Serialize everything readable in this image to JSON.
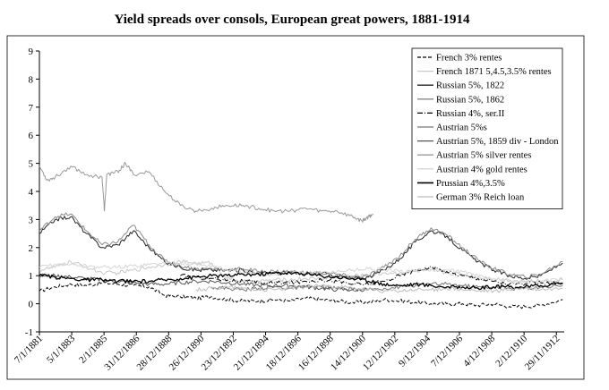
{
  "chart_data": {
    "type": "line",
    "title": "Yield spreads over consols, European great powers, 1881-1914",
    "xlabel": "",
    "ylabel": "",
    "ylim": [
      -1,
      9
    ],
    "yticks": [
      "-1",
      "0",
      "1",
      "2",
      "3",
      "4",
      "5",
      "6",
      "7",
      "8",
      "9"
    ],
    "x_tick_labels": [
      "7/1/1881",
      "5/1/1883",
      "2/1/1885",
      "31/12/1886",
      "28/12/1888",
      "26/12/1890",
      "23/12/1892",
      "21/12/1894",
      "18/12/1896",
      "16/12/1898",
      "14/12/1900",
      "12/12/1902",
      "9/12/1904",
      "7/12/1906",
      "4/12/1908",
      "2/12/1910",
      "29/11/1912"
    ],
    "x_range": [
      1881.0,
      1914.5
    ],
    "grid": false,
    "legend_position": "top-right",
    "series": [
      {
        "name": "French 3% rentes",
        "color": "#000000",
        "dash": "4,2",
        "width": 1.0,
        "x": [
          1881,
          1882,
          1883,
          1884,
          1885,
          1886,
          1887,
          1888,
          1889,
          1890,
          1891,
          1892,
          1893,
          1894,
          1895,
          1896,
          1897,
          1898,
          1899,
          1900,
          1901,
          1902,
          1903,
          1904,
          1905,
          1906,
          1907,
          1908,
          1909,
          1910,
          1911,
          1912,
          1913,
          1914.4
        ],
        "y": [
          0.45,
          0.6,
          0.7,
          0.65,
          0.75,
          0.7,
          0.65,
          0.6,
          0.3,
          0.25,
          0.2,
          0.25,
          0.15,
          0.1,
          0.1,
          0.15,
          0.1,
          0.2,
          0.15,
          0.1,
          0.05,
          0.05,
          0.15,
          0.1,
          0.05,
          0.0,
          0.0,
          0.0,
          -0.05,
          0.0,
          -0.1,
          -0.1,
          -0.05,
          0.15
        ]
      },
      {
        "name": "French 1871 5,4.5,3.5% rentes",
        "color": "#c8c8c8",
        "dash": "",
        "width": 1.0,
        "x": [
          1881,
          1882,
          1883,
          1884,
          1885,
          1886,
          1887,
          1888,
          1889,
          1890,
          1891,
          1892,
          1893,
          1894,
          1895,
          1896,
          1897,
          1898,
          1899,
          1900,
          1901,
          1902,
          1903,
          1904,
          1905,
          1906,
          1907,
          1908,
          1909,
          1910,
          1911,
          1912,
          1913,
          1914.4
        ],
        "y": [
          1.2,
          1.3,
          1.5,
          1.3,
          1.1,
          1.1,
          1.2,
          1.3,
          1.4,
          1.5,
          1.45,
          1.45,
          0.9,
          0.8,
          0.8,
          0.85,
          0.85,
          0.9,
          0.9,
          0.95,
          1.0,
          1.0,
          1.1,
          1.1,
          1.15,
          1.2,
          1.1,
          1.05,
          0.95,
          0.9,
          0.85,
          0.8,
          0.8,
          0.85
        ]
      },
      {
        "name": "Russian 5%, 1822",
        "color": "#222222",
        "dash": "",
        "width": 1.0,
        "x": [
          1881,
          1882,
          1883,
          1884,
          1885,
          1886,
          1887,
          1888,
          1889,
          1890,
          1891,
          1892,
          1893,
          1894,
          1895,
          1896,
          1897,
          1898,
          1899,
          1900,
          1901,
          1902,
          1903,
          1904,
          1905,
          1906,
          1907,
          1908,
          1909,
          1910,
          1911,
          1912,
          1913,
          1914.4
        ],
        "y": [
          2.5,
          3.0,
          3.1,
          2.5,
          2.0,
          2.1,
          2.6,
          2.0,
          1.5,
          1.3,
          1.2,
          1.2,
          1.2,
          1.2,
          1.1,
          1.1,
          1.1,
          1.05,
          1.1,
          1.0,
          0.9,
          0.95,
          1.2,
          1.6,
          2.2,
          2.6,
          2.4,
          1.9,
          1.5,
          1.2,
          1.0,
          0.9,
          1.0,
          1.45
        ]
      },
      {
        "name": "Russian 5%, 1862",
        "color": "#8a8a8a",
        "dash": "",
        "width": 1.0,
        "x": [
          1881,
          1882,
          1883,
          1884,
          1885,
          1886,
          1887,
          1888,
          1889,
          1890,
          1891,
          1892,
          1893,
          1894,
          1895,
          1896,
          1897,
          1898,
          1899,
          1900,
          1901,
          1902,
          1903,
          1904,
          1905,
          1906,
          1907,
          1908,
          1909,
          1910,
          1911,
          1912,
          1913,
          1914.4
        ],
        "y": [
          2.6,
          3.1,
          3.2,
          2.6,
          2.1,
          2.2,
          2.8,
          2.1,
          1.55,
          1.35,
          1.25,
          1.25,
          1.2,
          1.25,
          1.15,
          1.15,
          1.15,
          1.1,
          1.1,
          1.05,
          0.95,
          1.0,
          1.3,
          1.7,
          2.3,
          2.7,
          2.45,
          2.0,
          1.55,
          1.25,
          1.05,
          0.95,
          1.05,
          1.5
        ]
      },
      {
        "name": "Russian 4%, ser.II",
        "color": "#000000",
        "dash": "6,2,1,2",
        "width": 1.0,
        "x": [
          1890,
          1891,
          1892,
          1893,
          1894,
          1895,
          1896,
          1897,
          1898,
          1899,
          1900,
          1901,
          1902,
          1903,
          1904,
          1905,
          1906,
          1907,
          1908,
          1909,
          1910,
          1911,
          1912,
          1913,
          1914.4
        ],
        "y": [
          1.0,
          0.95,
          0.9,
          0.85,
          0.8,
          0.75,
          0.75,
          0.75,
          0.8,
          0.85,
          0.8,
          0.7,
          0.7,
          0.8,
          1.0,
          1.2,
          1.3,
          1.15,
          1.0,
          0.9,
          0.8,
          0.7,
          0.7,
          0.75,
          0.7
        ]
      },
      {
        "name": "Austrian 5%s",
        "color": "#777777",
        "dash": "",
        "width": 1.0,
        "x": [
          1892,
          1893,
          1894,
          1895,
          1896,
          1897,
          1898,
          1899,
          1900,
          1901,
          1902,
          1903,
          1904,
          1905,
          1906,
          1907,
          1908,
          1909,
          1910,
          1911,
          1912,
          1913,
          1914.4
        ],
        "y": [
          0.6,
          0.55,
          0.5,
          0.55,
          0.6,
          0.55,
          0.6,
          0.6,
          0.55,
          0.5,
          0.5,
          0.55,
          0.6,
          0.65,
          0.7,
          0.7,
          0.65,
          0.6,
          0.6,
          0.55,
          0.55,
          0.6,
          0.65
        ]
      },
      {
        "name": "Austrian 5%, 1859 div - London",
        "color": "#555555",
        "dash": "",
        "width": 1.0,
        "x": [
          1881,
          1882,
          1883,
          1884,
          1885,
          1886,
          1887,
          1888,
          1889,
          1890,
          1891,
          1892,
          1893,
          1894,
          1895,
          1896,
          1897,
          1898,
          1899,
          1900,
          1901,
          1902
        ],
        "y": [
          1.0,
          1.0,
          0.95,
          0.9,
          0.85,
          0.8,
          0.75,
          0.7,
          0.7,
          0.75,
          0.8,
          0.8,
          0.75,
          0.7,
          0.65,
          0.65,
          0.65,
          0.6,
          0.55,
          0.5,
          0.5,
          0.5
        ]
      },
      {
        "name": "Austrian 5% silver rentes",
        "color": "#999999",
        "dash": "",
        "width": 1.0,
        "x": [
          1881,
          1881.5,
          1882,
          1883,
          1884,
          1885,
          1885.15,
          1885.3,
          1886,
          1886.5,
          1887,
          1888,
          1889,
          1890,
          1891,
          1892,
          1893,
          1894,
          1895,
          1896,
          1897,
          1898,
          1899,
          1900,
          1901,
          1901.6,
          1902,
          1902.3
        ],
        "y": [
          4.9,
          4.4,
          4.5,
          4.9,
          4.6,
          4.5,
          3.3,
          4.6,
          4.7,
          5.0,
          4.6,
          4.7,
          4.0,
          3.5,
          3.3,
          3.4,
          3.5,
          3.5,
          3.4,
          3.3,
          3.3,
          3.4,
          3.3,
          3.3,
          3.1,
          2.95,
          3.1,
          3.2
        ]
      },
      {
        "name": "Austrian 4% gold rentes",
        "color": "#d6d6d6",
        "dash": "",
        "width": 1.0,
        "x": [
          1881,
          1882,
          1883,
          1884,
          1885,
          1886,
          1887,
          1888,
          1889,
          1890,
          1891,
          1892,
          1893,
          1894,
          1895,
          1896,
          1897,
          1898,
          1899,
          1900,
          1901,
          1902,
          1903,
          1904,
          1905,
          1906,
          1907,
          1908,
          1909,
          1910,
          1911,
          1912,
          1913,
          1914.4
        ],
        "y": [
          1.3,
          1.4,
          1.4,
          1.35,
          1.3,
          1.3,
          1.35,
          1.4,
          1.45,
          1.45,
          1.4,
          1.35,
          1.2,
          1.1,
          1.05,
          1.05,
          1.1,
          1.1,
          1.1,
          1.15,
          1.2,
          1.25,
          1.2,
          1.15,
          1.2,
          1.2,
          1.2,
          1.15,
          1.0,
          0.9,
          0.8,
          0.75,
          0.8,
          0.9
        ]
      },
      {
        "name": "Prussian 4%,3.5%",
        "color": "#000000",
        "dash": "",
        "width": 1.3,
        "x": [
          1881,
          1882,
          1883,
          1884,
          1885,
          1886,
          1887,
          1888,
          1889,
          1890,
          1891,
          1892,
          1893,
          1894,
          1895,
          1896,
          1897,
          1898,
          1899,
          1900,
          1901,
          1902,
          1903,
          1904,
          1905,
          1906,
          1907,
          1908,
          1909,
          1910,
          1911,
          1912,
          1913,
          1914.4
        ],
        "y": [
          1.0,
          0.95,
          0.9,
          0.85,
          0.85,
          0.8,
          0.8,
          0.8,
          0.85,
          0.9,
          0.95,
          1.0,
          1.0,
          1.05,
          1.05,
          1.1,
          1.1,
          1.05,
          1.0,
          0.95,
          0.9,
          0.8,
          0.7,
          0.65,
          0.7,
          0.65,
          0.6,
          0.6,
          0.55,
          0.6,
          0.6,
          0.6,
          0.65,
          0.75
        ]
      },
      {
        "name": "German 3% Reich loan",
        "color": "#bdbdbd",
        "dash": "",
        "width": 1.0,
        "x": [
          1891,
          1892,
          1893,
          1894,
          1895,
          1896,
          1897,
          1898,
          1899,
          1900,
          1901,
          1902,
          1903,
          1904,
          1905,
          1906,
          1907,
          1908,
          1909,
          1910,
          1911,
          1912,
          1913,
          1914.4
        ],
        "y": [
          0.5,
          0.55,
          0.6,
          0.55,
          0.5,
          0.5,
          0.55,
          0.6,
          0.65,
          0.6,
          0.55,
          0.5,
          0.45,
          0.45,
          0.5,
          0.5,
          0.55,
          0.5,
          0.45,
          0.45,
          0.5,
          0.55,
          0.5,
          0.55
        ]
      }
    ]
  }
}
